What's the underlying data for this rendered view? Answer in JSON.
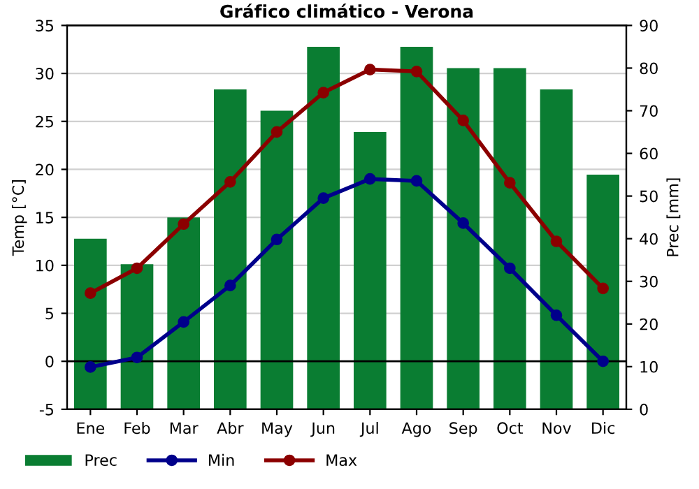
{
  "chart_data": {
    "type": "line",
    "title": "Gráfico climático - Verona",
    "ylabel": "Temp [°C]",
    "y2label": "Prec [mm]",
    "categories": [
      "Ene",
      "Feb",
      "Mar",
      "Abr",
      "May",
      "Jun",
      "Jul",
      "Ago",
      "Sep",
      "Oct",
      "Nov",
      "Dic"
    ],
    "series": [
      {
        "name": "Prec",
        "type": "bar",
        "axis": "y2",
        "color": "#0a7d32",
        "values": [
          40,
          34,
          45,
          75,
          70,
          85,
          65,
          85,
          80,
          80,
          75,
          55
        ]
      },
      {
        "name": "Min",
        "color": "#00008b",
        "values": [
          -0.6,
          0.4,
          4.1,
          7.9,
          12.7,
          17.0,
          19.0,
          18.8,
          14.4,
          9.7,
          4.8,
          0.0
        ]
      },
      {
        "name": "Max",
        "color": "#8b0000",
        "values": [
          7.1,
          9.7,
          14.3,
          18.7,
          23.9,
          28.0,
          30.4,
          30.2,
          25.1,
          18.6,
          12.5,
          7.6
        ]
      }
    ],
    "ylim": [
      -5,
      35
    ],
    "yticks": [
      -5,
      0,
      5,
      10,
      15,
      20,
      25,
      30,
      35
    ],
    "y2lim": [
      0,
      90
    ],
    "y2ticks": [
      0,
      10,
      20,
      30,
      40,
      50,
      60,
      70,
      80,
      90
    ],
    "ref_lines": [
      {
        "axis": "y",
        "value": 0,
        "color": "#000000"
      }
    ],
    "grid": "y",
    "legend": "bottom",
    "marker": "circle",
    "line_style": "solid"
  }
}
